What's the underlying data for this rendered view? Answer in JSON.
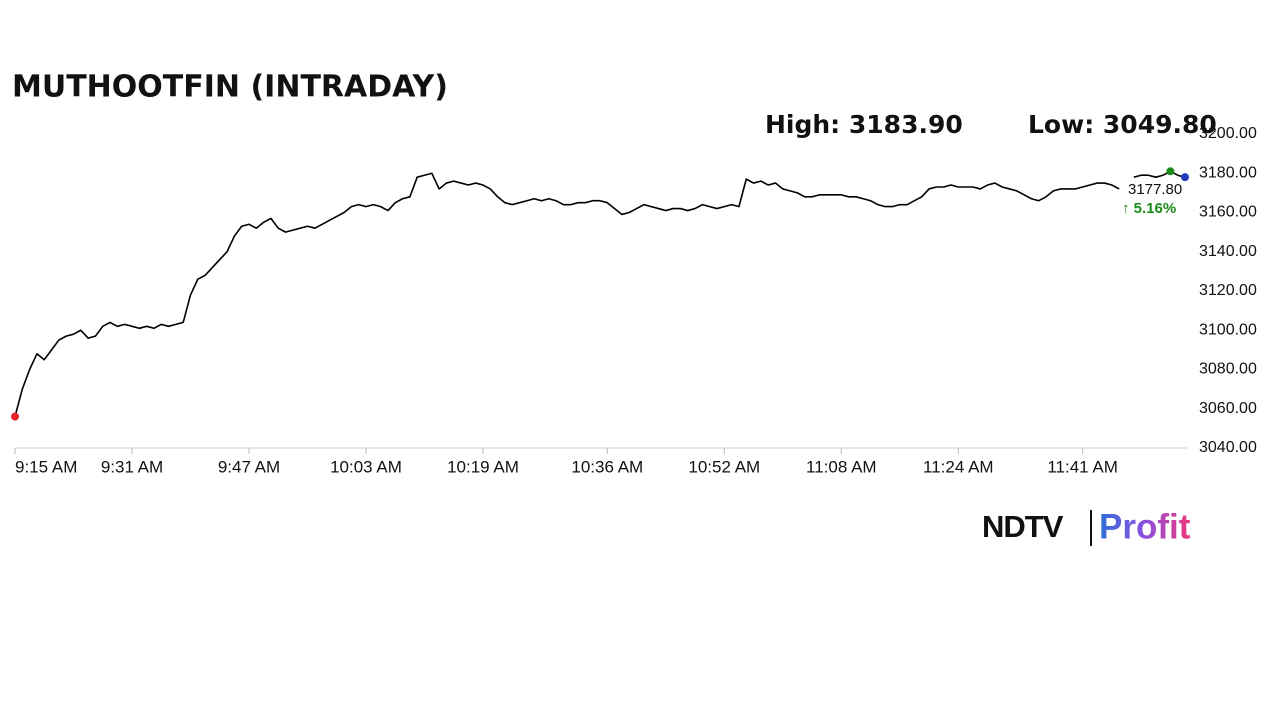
{
  "chart_data": {
    "type": "line",
    "title": "MUTHOOTFIN (INTRADAY)",
    "high_label": "High: 3183.90",
    "low_label": "Low: 3049.80",
    "last_price_label": "3177.80",
    "change_label": "↑ 5.16%",
    "color": "#000000",
    "categories": [
      "9:15 AM",
      null,
      null,
      null,
      null,
      null,
      null,
      null,
      null,
      null,
      null,
      null,
      null,
      null,
      null,
      null,
      "9:31 AM",
      null,
      null,
      null,
      null,
      null,
      null,
      null,
      null,
      null,
      null,
      null,
      null,
      null,
      null,
      null,
      "9:47 AM",
      null,
      null,
      null,
      null,
      null,
      null,
      null,
      null,
      null,
      null,
      null,
      null,
      null,
      null,
      null,
      "10:03 AM",
      null,
      null,
      null,
      null,
      null,
      null,
      null,
      null,
      null,
      null,
      null,
      null,
      null,
      null,
      null,
      "10:19 AM",
      null,
      null,
      null,
      null,
      null,
      null,
      null,
      null,
      null,
      null,
      null,
      null,
      null,
      null,
      null,
      null,
      "10:36 AM",
      null,
      null,
      null,
      null,
      null,
      null,
      null,
      null,
      null,
      null,
      null,
      null,
      null,
      null,
      null,
      "10:52 AM",
      null,
      null,
      null,
      null,
      null,
      null,
      null,
      null,
      null,
      null,
      null,
      null,
      null,
      null,
      null,
      "11:08 AM",
      null,
      null,
      null,
      null,
      null,
      null,
      null,
      null,
      null,
      null,
      null,
      null,
      null,
      null,
      null,
      "11:24 AM",
      null,
      null,
      null,
      null,
      null,
      null,
      null,
      null,
      null,
      null,
      null,
      null,
      null,
      null,
      null,
      null,
      "11:41 AM",
      null,
      null,
      null,
      null,
      null,
      null,
      null,
      null,
      null,
      null,
      null,
      null,
      null,
      null
    ],
    "values": [
      3056,
      3070,
      3080,
      3088,
      3085,
      3090,
      3095,
      3097,
      3098,
      3100,
      3096,
      3097,
      3102,
      3104,
      3102,
      3103,
      3102,
      3101,
      3102,
      3101,
      3103,
      3102,
      3103,
      3104,
      3118,
      3126,
      3128,
      3132,
      3136,
      3140,
      3148,
      3153,
      3154,
      3152,
      3155,
      3157,
      3152,
      3150,
      3151,
      3152,
      3153,
      3152,
      3154,
      3156,
      3158,
      3160,
      3163,
      3164,
      3163,
      3164,
      3163,
      3161,
      3165,
      3167,
      3168,
      3178,
      3179,
      3180,
      3172,
      3175,
      3176,
      3175,
      3174,
      3175,
      3174,
      3172,
      3168,
      3165,
      3164,
      3165,
      3166,
      3167,
      3166,
      3167,
      3166,
      3164,
      3164,
      3165,
      3165,
      3166,
      3166,
      3165,
      3162,
      3159,
      3160,
      3162,
      3164,
      3163,
      3162,
      3161,
      3162,
      3162,
      3161,
      3162,
      3164,
      3163,
      3162,
      3163,
      3164,
      3163,
      3177,
      3175,
      3176,
      3174,
      3175,
      3172,
      3171,
      3170,
      3168,
      3168,
      3169,
      3169,
      3169,
      3169,
      3168,
      3168,
      3167,
      3166,
      3164,
      3163,
      3163,
      3164,
      3164,
      3166,
      3168,
      3172,
      3173,
      3173,
      3174,
      3173,
      3173,
      3173,
      3172,
      3174,
      3175,
      3173,
      3172,
      3171,
      3169,
      3167,
      3166,
      3168,
      3171,
      3172,
      3172,
      3172,
      3173,
      3174,
      3175,
      3175,
      3174,
      3172,
      null,
      3178,
      3179,
      3179,
      3178,
      3179,
      3181,
      3179,
      3178
    ],
    "ylim": [
      3040,
      3200
    ],
    "yticks": [
      {
        "value": 3040,
        "label": "3040.00"
      },
      {
        "value": 3060,
        "label": "3060.00"
      },
      {
        "value": 3080,
        "label": "3080.00"
      },
      {
        "value": 3100,
        "label": "3100.00"
      },
      {
        "value": 3120,
        "label": "3120.00"
      },
      {
        "value": 3140,
        "label": "3140.00"
      },
      {
        "value": 3160,
        "label": "3160.00"
      },
      {
        "value": 3180,
        "label": "3180.00"
      },
      {
        "value": 3200,
        "label": "3200.00"
      }
    ],
    "y_axis_side": "right",
    "grid": false
  },
  "logo": {
    "brand": "NDTV",
    "product": "Profit"
  }
}
